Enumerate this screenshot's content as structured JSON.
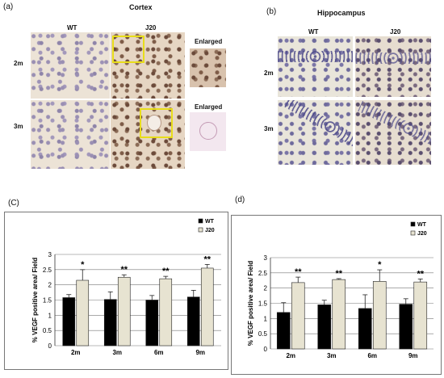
{
  "panel_a": {
    "label": "(a)",
    "title": "Cortex",
    "col_wt": "WT",
    "col_j20": "J20",
    "col_enlarged_1": "Enlarged",
    "col_enlarged_2": "Enlarged",
    "row_2m": "2m",
    "row_3m": "3m"
  },
  "panel_b": {
    "label": "(b)",
    "title": "Hippocampus",
    "col_wt": "WT",
    "col_j20": "J20",
    "row_2m": "2m",
    "row_3m": "3m"
  },
  "panel_c_label": "(C)",
  "panel_d_label": "(d)",
  "colors": {
    "wt": "#000000",
    "j20": "#e7e3d1",
    "edge": "#222222"
  },
  "chart_data": [
    {
      "type": "bar",
      "categories": [
        "2m",
        "3m",
        "6m",
        "9m"
      ],
      "series": [
        {
          "name": "WT",
          "values": [
            1.58,
            1.52,
            1.5,
            1.6
          ],
          "errors": [
            0.1,
            0.25,
            0.15,
            0.22
          ]
        },
        {
          "name": "J20",
          "values": [
            2.15,
            2.25,
            2.2,
            2.55
          ],
          "errors": [
            0.35,
            0.08,
            0.08,
            0.12
          ]
        }
      ],
      "significance": [
        "*",
        "**",
        "**",
        "**"
      ],
      "ylabel": "% VEGF positive area/ Field",
      "ylim": [
        0,
        3
      ],
      "yticks": [
        "0",
        "0.5",
        "1",
        "1.5",
        "2",
        "2.5",
        "3"
      ],
      "grid": true,
      "legend": "top-right"
    },
    {
      "type": "bar",
      "categories": [
        "2m",
        "3m",
        "6m",
        "9m"
      ],
      "series": [
        {
          "name": "WT",
          "values": [
            1.2,
            1.45,
            1.33,
            1.47
          ],
          "errors": [
            0.32,
            0.15,
            0.45,
            0.18
          ]
        },
        {
          "name": "J20",
          "values": [
            2.18,
            2.28,
            2.22,
            2.2
          ],
          "errors": [
            0.18,
            0.03,
            0.38,
            0.1
          ]
        }
      ],
      "significance": [
        "**",
        "**",
        "*",
        "**"
      ],
      "ylabel": "% VEGF positive area/ Field",
      "ylim": [
        0,
        3
      ],
      "yticks": [
        "0",
        "0.5",
        "1",
        "1.5",
        "2",
        "2.5",
        "3"
      ],
      "grid": true,
      "legend": "top-right"
    }
  ]
}
